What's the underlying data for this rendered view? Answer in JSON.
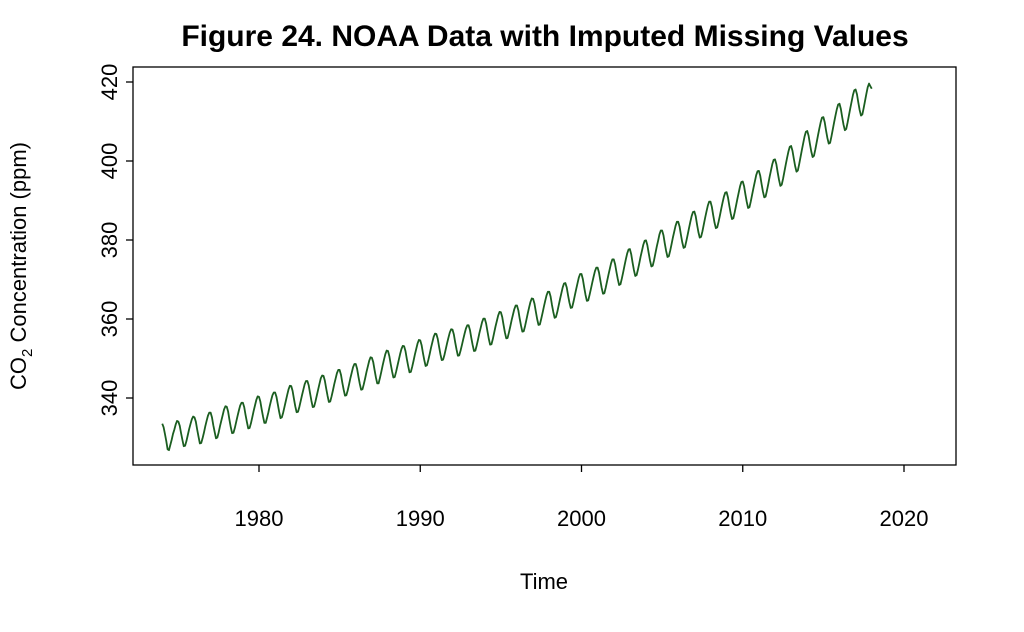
{
  "chart_data": {
    "type": "line",
    "title": "Figure 24. NOAA Data with Imputed Missing Values",
    "xlabel": "Time",
    "ylabel_main": "CO",
    "ylabel_sub": "2",
    "ylabel_rest": " Concentration (ppm)",
    "xlim": [
      1974,
      2021.5
    ],
    "ylim": [
      326,
      421
    ],
    "x_ticks": [
      1980,
      1990,
      2000,
      2010,
      2020
    ],
    "x_tick_labels": [
      "1980",
      "1990",
      "2000",
      "2010",
      "2020"
    ],
    "y_ticks": [
      340,
      360,
      380,
      400,
      420
    ],
    "y_tick_labels": [
      "340",
      "360",
      "380",
      "400",
      "420"
    ],
    "grid": false,
    "legend": "none",
    "series": [
      {
        "color": "#1b5e20",
        "x_start": 1974.0,
        "x_end": 2021.33,
        "x_step": 0.083333,
        "values": [
          333.5,
          332.6,
          330.9,
          329.1,
          327.0,
          326.8,
          328.1,
          329.4,
          330.9,
          332.0,
          333.3,
          334.2,
          334.0,
          333.0,
          331.1,
          329.4,
          327.8,
          327.9,
          329.1,
          330.6,
          332.1,
          333.4,
          334.6,
          335.3,
          335.1,
          334.0,
          332.0,
          330.2,
          328.5,
          328.6,
          329.8,
          331.2,
          332.8,
          334.2,
          335.5,
          336.3,
          336.3,
          335.1,
          333.1,
          331.4,
          329.8,
          330.0,
          331.3,
          332.9,
          334.3,
          335.7,
          337.1,
          337.9,
          337.8,
          336.6,
          334.5,
          332.6,
          331.1,
          331.2,
          332.4,
          333.9,
          335.4,
          336.8,
          338.1,
          338.8,
          338.8,
          337.7,
          335.7,
          333.9,
          332.3,
          332.4,
          333.6,
          335.1,
          336.7,
          338.1,
          339.5,
          340.4,
          340.3,
          339.1,
          337.1,
          335.3,
          333.7,
          333.7,
          335.0,
          336.4,
          338.0,
          339.4,
          340.7,
          341.4,
          341.4,
          340.3,
          338.4,
          336.5,
          334.9,
          335.1,
          336.3,
          337.8,
          339.3,
          340.8,
          342.2,
          343.1,
          343.0,
          341.8,
          339.8,
          337.9,
          336.4,
          336.5,
          337.7,
          339.2,
          340.7,
          342.1,
          343.5,
          344.3,
          344.3,
          343.2,
          341.2,
          339.3,
          337.7,
          337.8,
          339.1,
          340.6,
          342.1,
          343.6,
          345.0,
          345.7,
          345.6,
          344.4,
          342.4,
          340.6,
          339.0,
          339.1,
          340.4,
          341.9,
          343.5,
          344.9,
          346.3,
          347.1,
          347.1,
          345.9,
          343.9,
          342.1,
          340.6,
          340.7,
          341.9,
          343.4,
          345.0,
          346.4,
          347.8,
          348.6,
          348.6,
          347.4,
          345.4,
          343.6,
          342.1,
          342.2,
          343.5,
          345.0,
          346.6,
          348.0,
          349.4,
          350.3,
          350.2,
          349.1,
          347.1,
          345.2,
          343.7,
          343.7,
          345.1,
          346.6,
          348.2,
          349.7,
          351.1,
          352.0,
          351.9,
          350.6,
          348.6,
          346.8,
          345.2,
          345.3,
          346.6,
          348.1,
          349.6,
          351.1,
          352.4,
          353.2,
          353.1,
          351.9,
          349.9,
          348.1,
          346.5,
          346.6,
          347.9,
          349.4,
          351.0,
          352.4,
          353.8,
          354.7,
          354.6,
          353.4,
          351.4,
          349.6,
          348.1,
          348.3,
          349.6,
          351.1,
          352.7,
          354.1,
          355.5,
          356.3,
          356.2,
          355.0,
          353.0,
          351.1,
          349.6,
          349.7,
          350.9,
          352.4,
          353.9,
          355.3,
          356.6,
          357.4,
          357.3,
          356.1,
          354.1,
          352.3,
          350.7,
          350.8,
          352.0,
          353.4,
          354.9,
          356.3,
          357.6,
          358.4,
          358.4,
          357.2,
          355.2,
          353.4,
          351.9,
          352.0,
          353.3,
          354.8,
          356.4,
          357.8,
          359.2,
          360.1,
          360.1,
          358.9,
          356.9,
          355.0,
          353.5,
          353.6,
          354.9,
          356.5,
          358.1,
          359.5,
          360.9,
          361.8,
          361.7,
          360.5,
          358.5,
          356.6,
          355.1,
          355.2,
          356.6,
          358.1,
          359.7,
          361.1,
          362.5,
          363.4,
          363.4,
          362.2,
          360.1,
          358.3,
          356.8,
          356.9,
          358.2,
          359.8,
          361.4,
          362.9,
          364.3,
          365.2,
          365.1,
          363.9,
          361.9,
          360.0,
          358.5,
          358.6,
          360.0,
          361.5,
          363.1,
          364.6,
          366.0,
          366.9,
          366.9,
          365.7,
          363.6,
          361.8,
          360.3,
          360.5,
          361.8,
          363.4,
          365.0,
          366.5,
          368.0,
          369.0,
          369.1,
          368.0,
          366.0,
          364.2,
          362.8,
          362.9,
          364.3,
          365.9,
          367.5,
          369.0,
          370.5,
          371.4,
          371.4,
          370.1,
          368.0,
          366.1,
          364.6,
          364.7,
          366.1,
          367.6,
          369.2,
          370.7,
          372.1,
          373.0,
          373.0,
          371.8,
          369.8,
          367.9,
          366.4,
          366.5,
          367.9,
          369.5,
          371.1,
          372.6,
          374.1,
          375.1,
          375.1,
          373.9,
          371.9,
          370.1,
          368.6,
          368.8,
          370.2,
          371.8,
          373.5,
          375.1,
          376.6,
          377.6,
          377.7,
          376.4,
          374.3,
          372.4,
          370.9,
          371.1,
          372.5,
          374.1,
          375.8,
          377.3,
          378.8,
          379.8,
          379.9,
          378.7,
          376.7,
          374.8,
          373.3,
          373.5,
          374.9,
          376.6,
          378.3,
          379.8,
          381.4,
          382.4,
          382.4,
          381.2,
          379.1,
          377.2,
          375.7,
          375.9,
          377.3,
          378.9,
          380.6,
          382.1,
          383.6,
          384.6,
          384.6,
          383.4,
          381.3,
          379.4,
          378.0,
          378.2,
          379.7,
          381.3,
          383.0,
          384.6,
          386.1,
          387.1,
          387.2,
          386.0,
          383.9,
          382.0,
          380.6,
          380.8,
          382.2,
          383.9,
          385.6,
          387.2,
          388.7,
          389.7,
          389.7,
          388.4,
          386.3,
          384.4,
          383.0,
          383.2,
          384.6,
          386.2,
          387.9,
          389.5,
          391.0,
          392.0,
          392.1,
          390.8,
          388.7,
          386.8,
          385.3,
          385.5,
          387.0,
          388.7,
          390.4,
          392.0,
          393.6,
          394.7,
          394.8,
          393.6,
          391.5,
          389.6,
          388.1,
          388.3,
          389.8,
          391.5,
          393.2,
          394.8,
          396.4,
          397.4,
          397.5,
          396.3,
          394.2,
          392.3,
          390.8,
          391.0,
          392.5,
          394.2,
          396.0,
          397.6,
          399.2,
          400.3,
          400.4,
          399.2,
          397.1,
          395.2,
          393.7,
          394.0,
          395.5,
          397.3,
          399.1,
          400.8,
          402.4,
          403.6,
          403.8,
          402.6,
          400.6,
          398.7,
          397.3,
          397.6,
          399.2,
          401.0,
          402.8,
          404.5,
          406.2,
          407.4,
          407.6,
          406.4,
          404.3,
          402.4,
          401.0,
          401.3,
          402.9,
          404.7,
          406.5,
          408.2,
          409.8,
          411.0,
          411.1,
          409.8,
          407.7,
          405.8,
          404.4,
          404.6,
          406.2,
          408.0,
          409.8,
          411.5,
          413.1,
          414.3,
          414.5,
          413.2,
          411.1,
          409.2,
          407.8,
          408.1,
          409.7,
          411.5,
          413.3,
          415.0,
          416.7,
          417.9,
          418.1,
          416.9,
          414.8,
          412.9,
          411.5,
          411.8,
          413.4,
          415.2,
          417.0,
          418.7,
          419.6,
          418.9,
          418.3
        ]
      }
    ]
  }
}
